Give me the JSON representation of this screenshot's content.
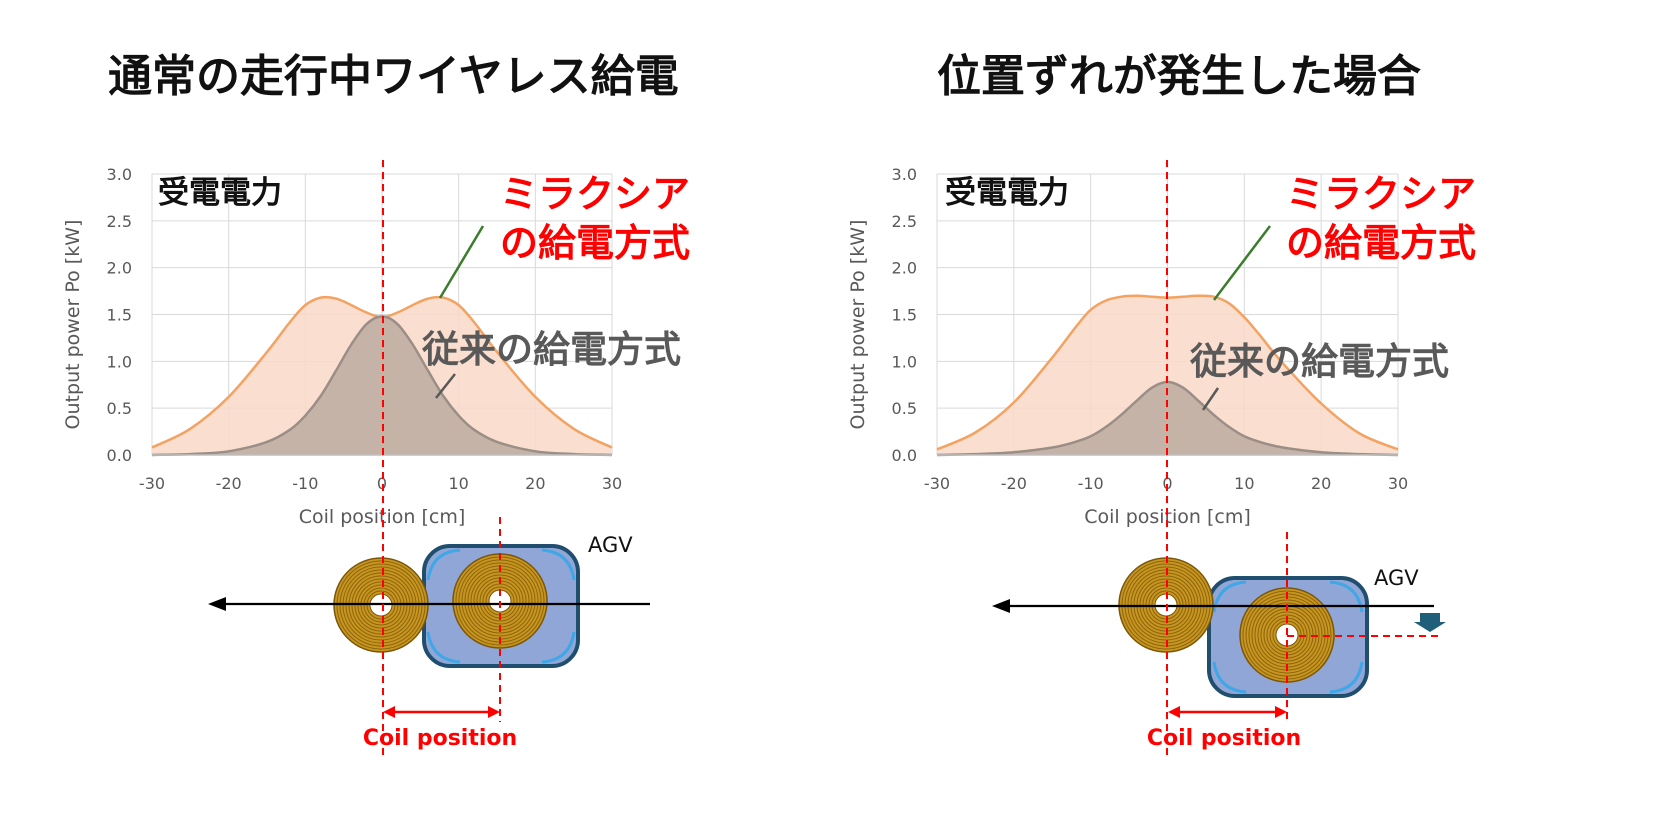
{
  "titles": {
    "left": "通常の走行中ワイヤレス給電",
    "right": "位置ずれが発生した場合"
  },
  "labels": {
    "received_power": "受電電力",
    "miracsia_line1": "ミラクシア",
    "miracsia_line2": "の給電方式",
    "conventional": "従来の給電方式",
    "agv": "AGV",
    "coil_position": "Coil position"
  },
  "colors": {
    "miracsia_line": "#f4a261",
    "miracsia_fill": "#f9d9c8",
    "conventional_line": "#9b8e86",
    "conventional_fill": "#c0aea3",
    "red": "#ff0000",
    "grid": "#d9d9d9",
    "agv_body": "#8fa6d6",
    "agv_border": "#1f4e6e",
    "coil_gold": "#b8860b"
  },
  "chart_data": [
    {
      "type": "area",
      "panel": "left",
      "title": "通常の走行中ワイヤレス給電",
      "xlabel": "Coil position [cm]",
      "ylabel": "Output power Po  [kW]",
      "xlim": [
        -30,
        30
      ],
      "ylim": [
        0,
        3.0
      ],
      "xticks": [
        "-30",
        "-20",
        "-10",
        "0",
        "10",
        "20",
        "30"
      ],
      "yticks": [
        "0.0",
        "0.5",
        "1.0",
        "1.5",
        "2.0",
        "2.5",
        "3.0"
      ],
      "grid": true,
      "series": [
        {
          "name": "ミラクシアの給電方式",
          "x": [
            -30,
            -25,
            -20,
            -15,
            -12,
            -10,
            -8,
            -6,
            -4,
            -2,
            0,
            2,
            4,
            6,
            8,
            10,
            12,
            15,
            20,
            25,
            30
          ],
          "values": [
            0.08,
            0.28,
            0.62,
            1.1,
            1.42,
            1.6,
            1.68,
            1.67,
            1.6,
            1.52,
            1.47,
            1.52,
            1.6,
            1.67,
            1.68,
            1.6,
            1.42,
            1.1,
            0.62,
            0.28,
            0.08
          ]
        },
        {
          "name": "従来の給電方式",
          "x": [
            -30,
            -25,
            -20,
            -15,
            -12,
            -10,
            -8,
            -6,
            -4,
            -2,
            0,
            2,
            4,
            6,
            8,
            10,
            12,
            15,
            20,
            25,
            30
          ],
          "values": [
            0.0,
            0.01,
            0.04,
            0.14,
            0.27,
            0.42,
            0.63,
            0.9,
            1.18,
            1.4,
            1.48,
            1.4,
            1.18,
            0.9,
            0.63,
            0.42,
            0.27,
            0.14,
            0.04,
            0.01,
            0.0
          ]
        }
      ]
    },
    {
      "type": "area",
      "panel": "right",
      "title": "位置ずれが発生した場合",
      "xlabel": "Coil position [cm]",
      "ylabel": "Output power Po  [kW]",
      "xlim": [
        -30,
        30
      ],
      "ylim": [
        0,
        3.0
      ],
      "xticks": [
        "-30",
        "-20",
        "-10",
        "0",
        "10",
        "20",
        "30"
      ],
      "yticks": [
        "0.0",
        "0.5",
        "1.0",
        "1.5",
        "2.0",
        "2.5",
        "3.0"
      ],
      "grid": true,
      "series": [
        {
          "name": "ミラクシアの給電方式",
          "x": [
            -30,
            -25,
            -20,
            -15,
            -12,
            -10,
            -8,
            -6,
            -4,
            -2,
            0,
            2,
            4,
            6,
            8,
            10,
            12,
            15,
            20,
            25,
            30
          ],
          "values": [
            0.06,
            0.24,
            0.56,
            1.04,
            1.36,
            1.55,
            1.65,
            1.69,
            1.7,
            1.69,
            1.68,
            1.69,
            1.7,
            1.69,
            1.62,
            1.47,
            1.28,
            0.98,
            0.55,
            0.23,
            0.06
          ]
        },
        {
          "name": "従来の給電方式",
          "x": [
            -30,
            -25,
            -20,
            -15,
            -12,
            -10,
            -8,
            -6,
            -4,
            -2,
            0,
            2,
            4,
            6,
            8,
            10,
            12,
            15,
            20,
            25,
            30
          ],
          "values": [
            0.0,
            0.01,
            0.03,
            0.08,
            0.14,
            0.2,
            0.3,
            0.43,
            0.58,
            0.72,
            0.78,
            0.72,
            0.58,
            0.43,
            0.3,
            0.2,
            0.14,
            0.08,
            0.03,
            0.01,
            0.0
          ]
        }
      ]
    }
  ]
}
